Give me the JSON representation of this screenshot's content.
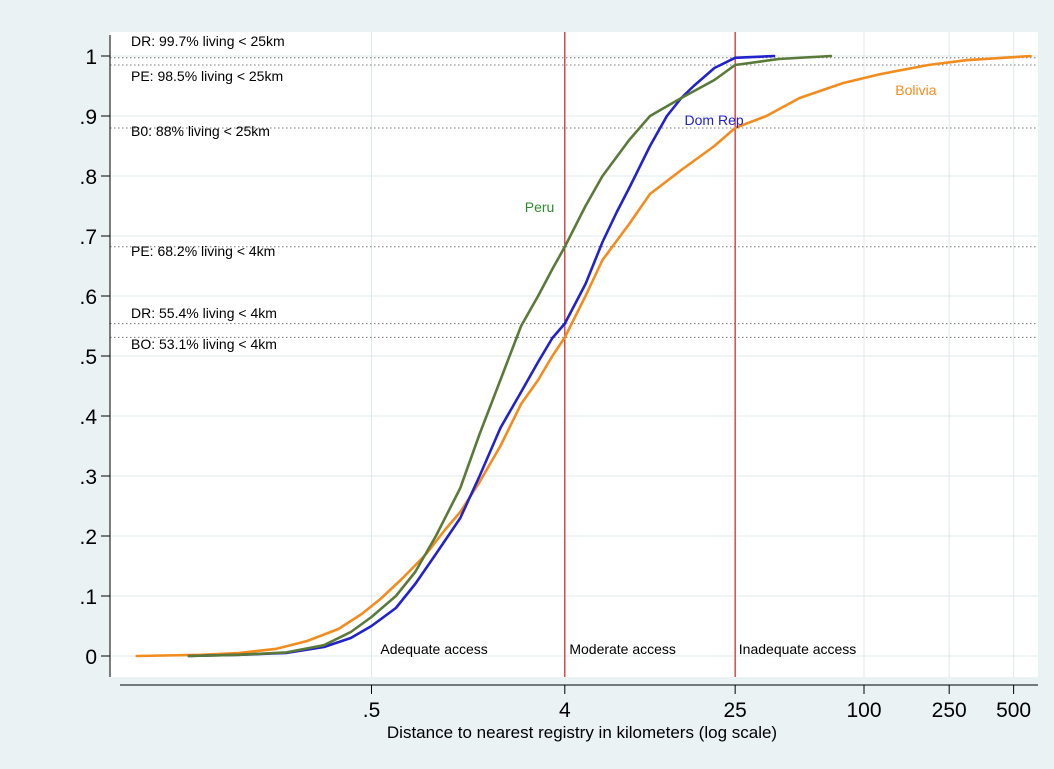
{
  "chart_data": {
    "type": "line",
    "xlabel": "Distance to nearest registry in kilometers (log scale)",
    "ylabel": "",
    "x_scale": "log",
    "xlim": [
      0.03,
      650
    ],
    "ylim": [
      -0.035,
      1.04
    ],
    "x_ticks": [
      {
        "value": 0.5,
        "label": ".5"
      },
      {
        "value": 4,
        "label": "4"
      },
      {
        "value": 25,
        "label": "25"
      },
      {
        "value": 100,
        "label": "100"
      },
      {
        "value": 250,
        "label": "250"
      },
      {
        "value": 500,
        "label": "500"
      }
    ],
    "y_ticks": [
      {
        "value": 0,
        "label": "0"
      },
      {
        "value": 0.1,
        "label": ".1"
      },
      {
        "value": 0.2,
        "label": ".2"
      },
      {
        "value": 0.3,
        "label": ".3"
      },
      {
        "value": 0.4,
        "label": ".4"
      },
      {
        "value": 0.5,
        "label": ".5"
      },
      {
        "value": 0.6,
        "label": ".6"
      },
      {
        "value": 0.7,
        "label": ".7"
      },
      {
        "value": 0.8,
        "label": ".8"
      },
      {
        "value": 0.9,
        "label": ".9"
      },
      {
        "value": 1,
        "label": "1"
      }
    ],
    "grid": true,
    "colors": {
      "plot_bg": "#ffffff",
      "outer_bg": "#eaf2f3",
      "grid": "#dfe9ea",
      "axis": "#000000",
      "threshold_line": "#cc2222",
      "reference_line": "#777777"
    },
    "series": [
      {
        "name": "Bolivia",
        "color": "#f28c1e",
        "points": [
          [
            0.04,
            0.0
          ],
          [
            0.08,
            0.002
          ],
          [
            0.12,
            0.005
          ],
          [
            0.18,
            0.012
          ],
          [
            0.25,
            0.025
          ],
          [
            0.35,
            0.045
          ],
          [
            0.45,
            0.07
          ],
          [
            0.55,
            0.095
          ],
          [
            0.7,
            0.13
          ],
          [
            0.9,
            0.17
          ],
          [
            1.1,
            0.21
          ],
          [
            1.3,
            0.24
          ],
          [
            1.6,
            0.29
          ],
          [
            2.0,
            0.35
          ],
          [
            2.5,
            0.42
          ],
          [
            3.0,
            0.46
          ],
          [
            3.5,
            0.5
          ],
          [
            4.0,
            0.531
          ],
          [
            5.0,
            0.6
          ],
          [
            6.0,
            0.66
          ],
          [
            8.0,
            0.72
          ],
          [
            10.0,
            0.77
          ],
          [
            14.0,
            0.81
          ],
          [
            20.0,
            0.85
          ],
          [
            25.0,
            0.88
          ],
          [
            35.0,
            0.9
          ],
          [
            50.0,
            0.93
          ],
          [
            80.0,
            0.955
          ],
          [
            120.0,
            0.97
          ],
          [
            200.0,
            0.985
          ],
          [
            300.0,
            0.993
          ],
          [
            600.0,
            1.0
          ]
        ]
      },
      {
        "name": "Dom Rep",
        "color": "#2222cc",
        "points": [
          [
            0.07,
            0.0
          ],
          [
            0.12,
            0.002
          ],
          [
            0.2,
            0.005
          ],
          [
            0.3,
            0.015
          ],
          [
            0.4,
            0.03
          ],
          [
            0.5,
            0.05
          ],
          [
            0.65,
            0.08
          ],
          [
            0.8,
            0.12
          ],
          [
            1.0,
            0.17
          ],
          [
            1.3,
            0.23
          ],
          [
            1.6,
            0.3
          ],
          [
            2.0,
            0.38
          ],
          [
            2.5,
            0.44
          ],
          [
            3.0,
            0.49
          ],
          [
            3.5,
            0.53
          ],
          [
            4.0,
            0.554
          ],
          [
            5.0,
            0.62
          ],
          [
            6.0,
            0.69
          ],
          [
            7.0,
            0.74
          ],
          [
            8.0,
            0.78
          ],
          [
            10.0,
            0.85
          ],
          [
            12.0,
            0.9
          ],
          [
            14.0,
            0.93
          ],
          [
            16.0,
            0.95
          ],
          [
            20.0,
            0.98
          ],
          [
            25.0,
            0.997
          ],
          [
            38.0,
            1.0
          ]
        ]
      },
      {
        "name": "Peru",
        "color": "#5a7a3a",
        "points": [
          [
            0.07,
            0.0
          ],
          [
            0.12,
            0.002
          ],
          [
            0.2,
            0.006
          ],
          [
            0.3,
            0.018
          ],
          [
            0.4,
            0.04
          ],
          [
            0.5,
            0.065
          ],
          [
            0.65,
            0.1
          ],
          [
            0.8,
            0.14
          ],
          [
            1.0,
            0.2
          ],
          [
            1.3,
            0.28
          ],
          [
            1.6,
            0.37
          ],
          [
            2.0,
            0.46
          ],
          [
            2.5,
            0.55
          ],
          [
            3.0,
            0.6
          ],
          [
            3.5,
            0.645
          ],
          [
            4.0,
            0.682
          ],
          [
            5.0,
            0.75
          ],
          [
            6.0,
            0.8
          ],
          [
            8.0,
            0.86
          ],
          [
            10.0,
            0.9
          ],
          [
            14.0,
            0.93
          ],
          [
            20.0,
            0.96
          ],
          [
            25.0,
            0.985
          ],
          [
            40.0,
            0.995
          ],
          [
            70.0,
            1.0
          ]
        ]
      }
    ],
    "series_labels": [
      {
        "text": "Bolivia",
        "x": 140,
        "y": 0.935,
        "color": "#f28c1e"
      },
      {
        "text": "Dom Rep",
        "x": 14.5,
        "y": 0.885,
        "color": "#2222cc"
      },
      {
        "text": "Peru",
        "x": 2.6,
        "y": 0.74,
        "color": "#2e8b2e"
      }
    ],
    "threshold_lines": [
      4,
      25
    ],
    "reference_lines": [
      {
        "y": 0.997,
        "label": "DR: 99.7% living < 25km"
      },
      {
        "y": 0.985,
        "label": "PE: 98.5% living < 25km"
      },
      {
        "y": 0.88,
        "label": "B0: 88% living < 25km"
      },
      {
        "y": 0.682,
        "label": "PE: 68.2% living < 4km"
      },
      {
        "y": 0.554,
        "label": "DR: 55.4% living < 4km"
      },
      {
        "y": 0.531,
        "label": "BO: 53.1% living < 4km"
      }
    ],
    "zone_labels": [
      {
        "text": "Adequate access",
        "x": 0.55
      },
      {
        "text": "Moderate access",
        "x": 4.2
      },
      {
        "text": "Inadequate access",
        "x": 26
      }
    ]
  }
}
